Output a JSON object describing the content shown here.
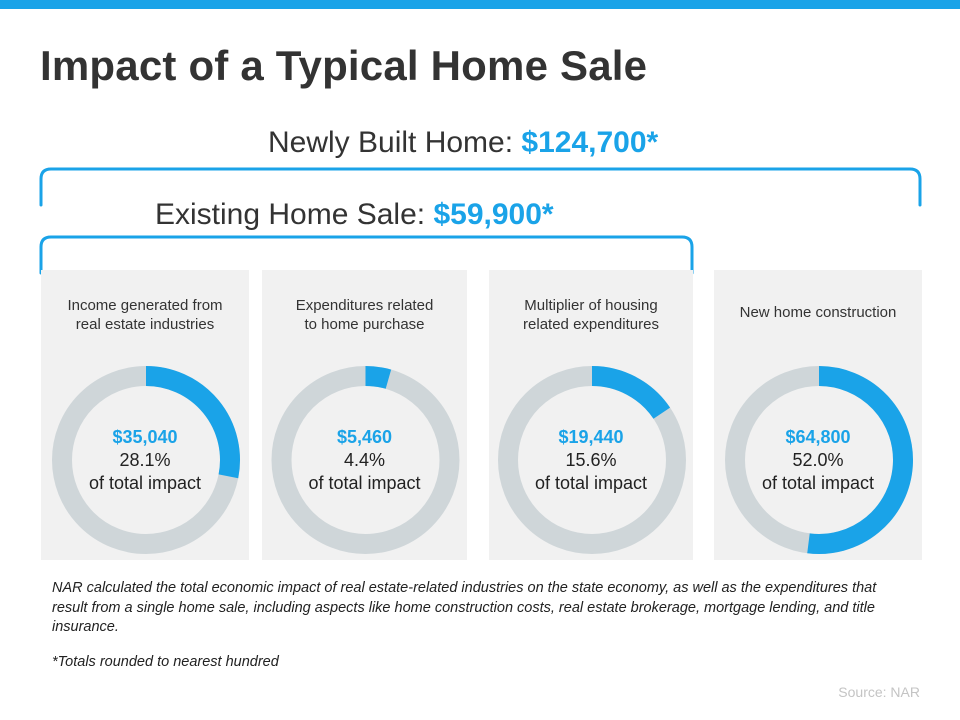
{
  "title": "Impact of a Typical Home Sale",
  "newly_built": {
    "label": "Newly Built Home:",
    "amount": "$124,700*"
  },
  "existing": {
    "label": "Existing Home Sale:",
    "amount": "$59,900*"
  },
  "colors": {
    "accent": "#1aa3e8",
    "ring": "#cfd6d9",
    "panel": "#f1f1f1"
  },
  "chart_data": {
    "type": "pie",
    "title": "Impact of a Typical Home Sale",
    "slices": [
      {
        "label": "Income generated from\nreal estate industries",
        "value": 35040,
        "value_label": "$35,040",
        "percent": 28.1,
        "percent_label": "28.1%",
        "caption": "of total impact"
      },
      {
        "label": "Expenditures related\nto home purchase",
        "value": 5460,
        "value_label": "$5,460",
        "percent": 4.4,
        "percent_label": "4.4%",
        "caption": "of total impact"
      },
      {
        "label": "Multiplier of housing\nrelated expenditures",
        "value": 19440,
        "value_label": "$19,440",
        "percent": 15.6,
        "percent_label": "15.6%",
        "caption": "of total impact"
      },
      {
        "label": "New home construction",
        "value": 64800,
        "value_label": "$64,800",
        "percent": 52.0,
        "percent_label": "52.0%",
        "caption": "of total impact"
      }
    ]
  },
  "footnote": "NAR calculated the total economic impact of real estate-related industries on the state economy, as well as the expenditures that result from a single home sale, including aspects like home construction costs, real estate brokerage, mortgage lending, and title insurance.",
  "note": "*Totals rounded to nearest hundred",
  "source": "Source: NAR"
}
